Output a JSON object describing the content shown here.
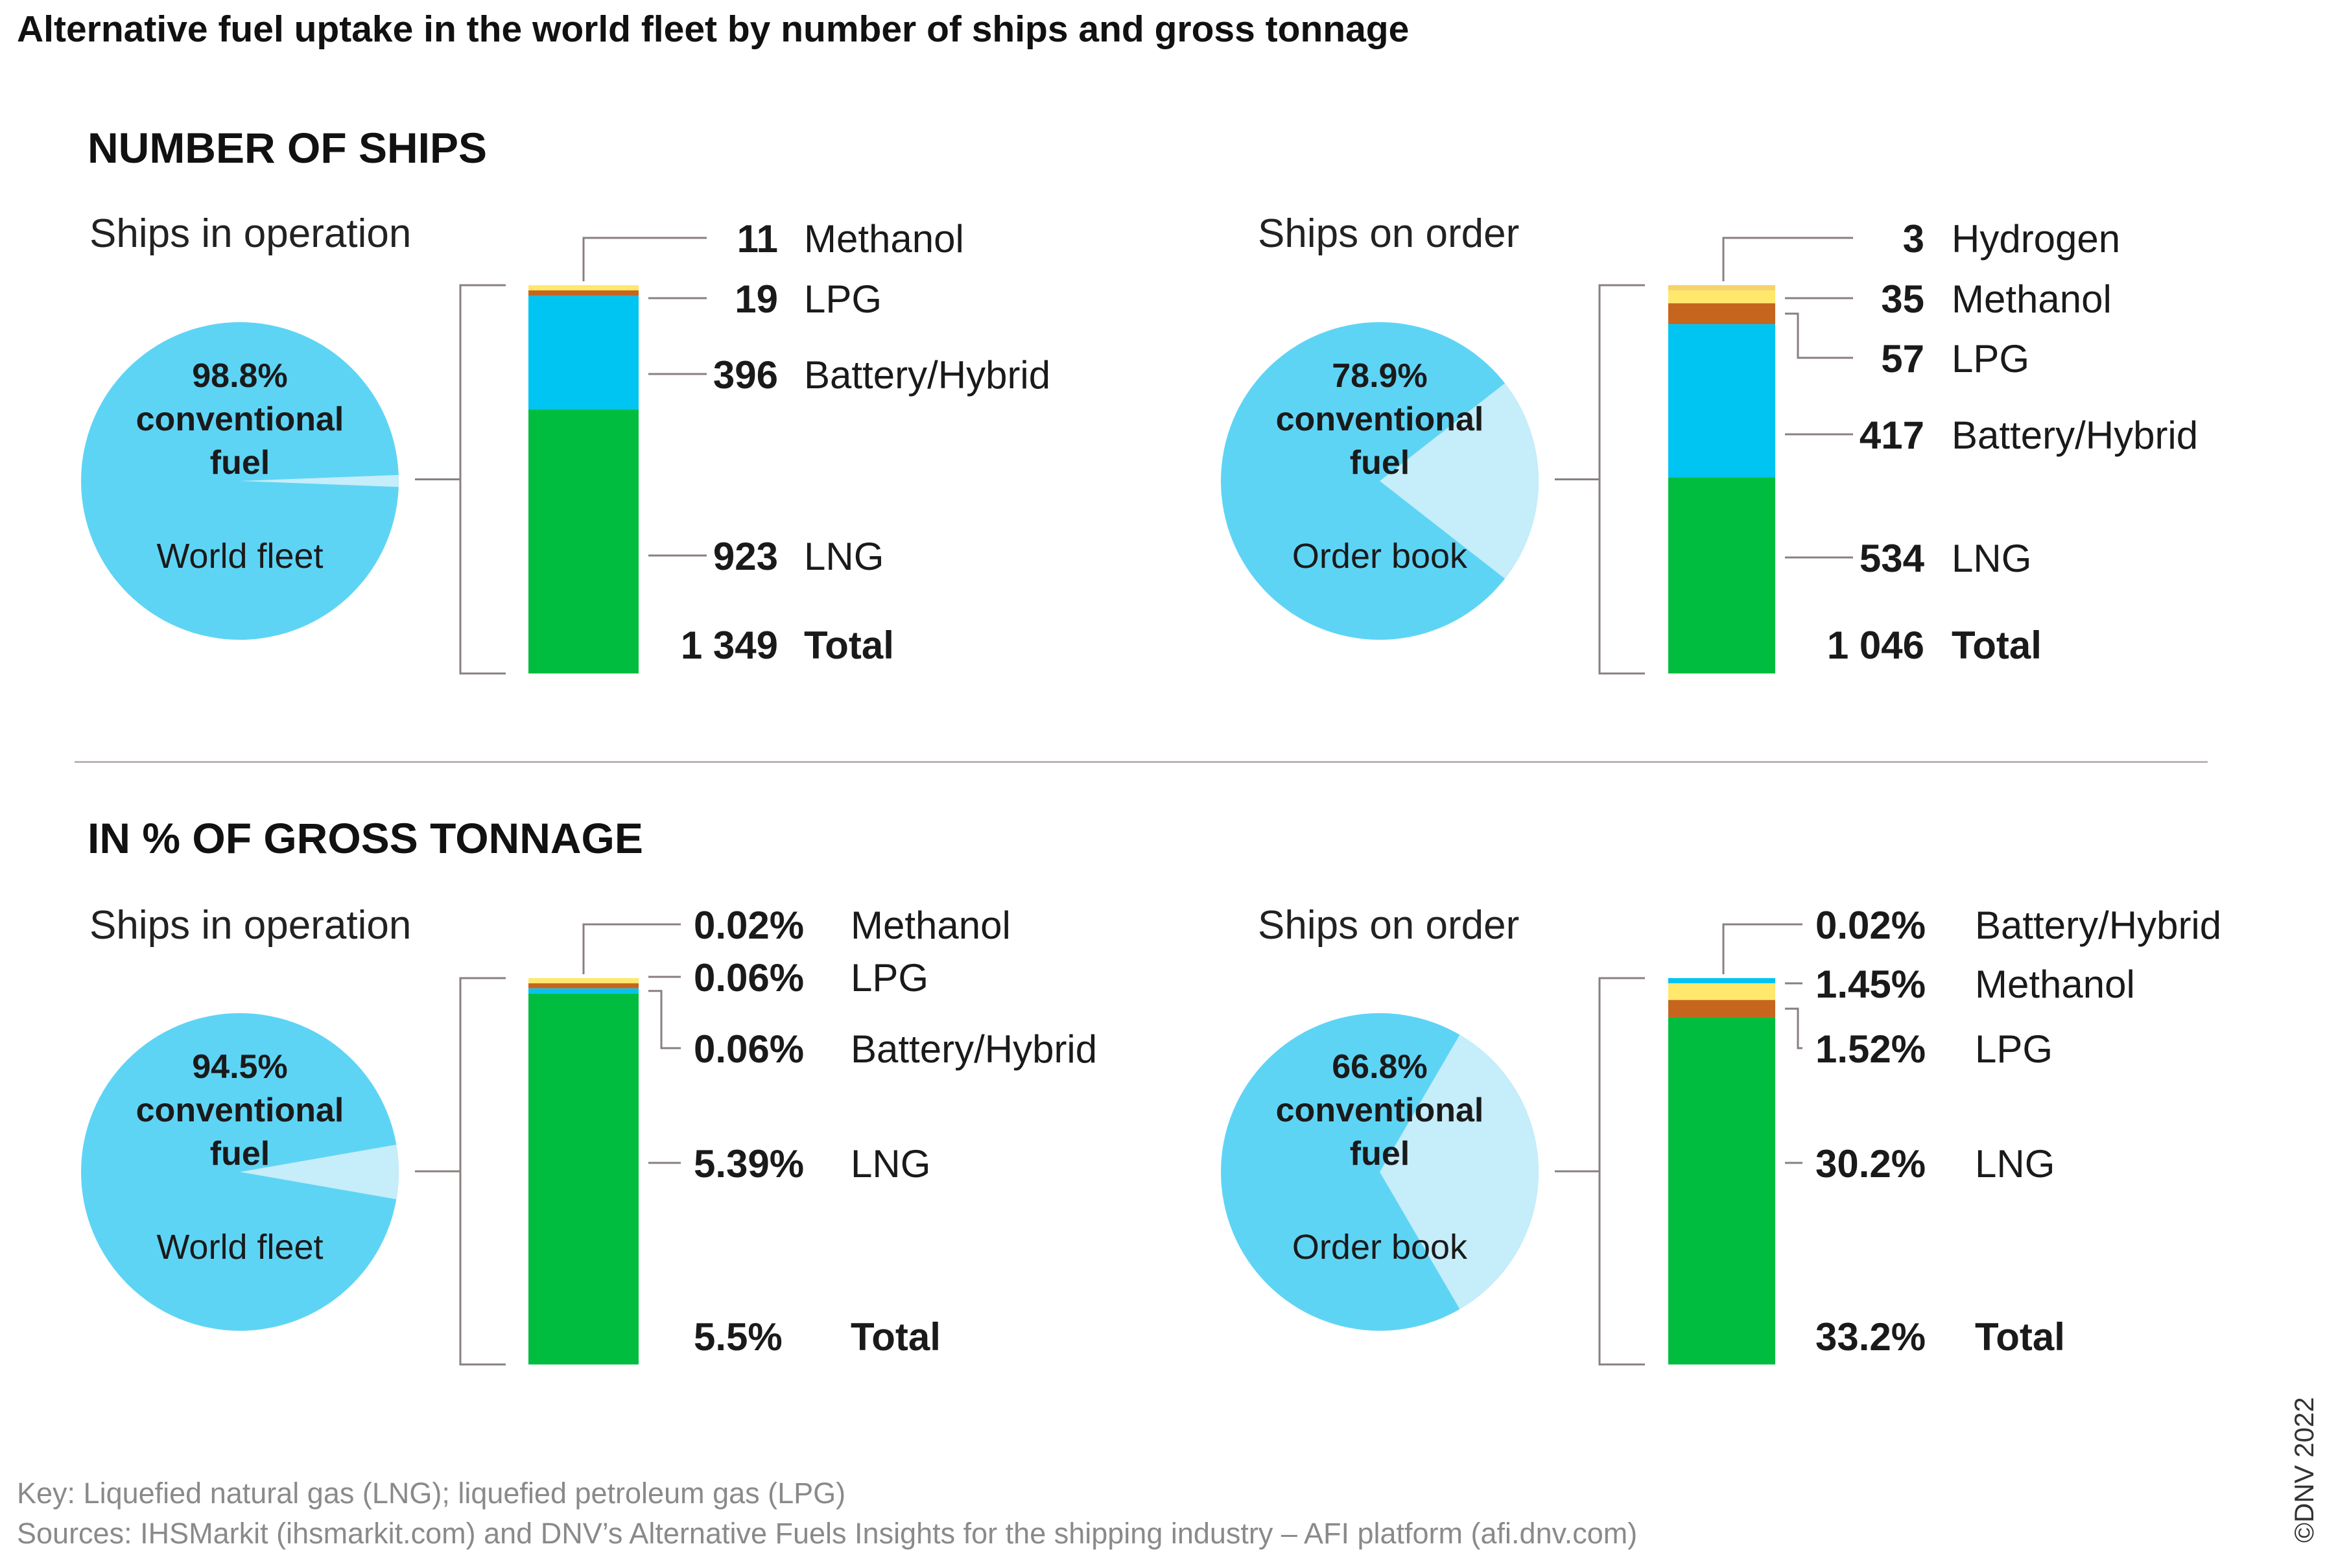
{
  "title": "Alternative fuel uptake in the world fleet by number of ships and gross tonnage",
  "sections": {
    "ships": "NUMBER OF SHIPS",
    "tonnage": "IN % OF GROSS TONNAGE"
  },
  "colors": {
    "pie_main": "#5ED4F5",
    "pie_slice": "#C5EDFA",
    "lng": "#00BD3F",
    "battery": "#00C4F2",
    "lpg": "#C6661E",
    "methanol": "#FFE86B",
    "hydrogen": "#F6D26B",
    "leader": "#8a7f7f"
  },
  "chart_data": [
    {
      "type": "bar",
      "panel": "ships-operation",
      "subtitle": "Ships in operation",
      "pie": {
        "pct_label": "98.8%",
        "line2": "conventional",
        "line3": "fuel",
        "caption": "World fleet",
        "main_share": 0.988
      },
      "segments": [
        {
          "name": "LNG",
          "value": 923,
          "label": "923",
          "color": "lng"
        },
        {
          "name": "Battery/Hybrid",
          "value": 396,
          "label": "396",
          "color": "battery"
        },
        {
          "name": "LPG",
          "value": 19,
          "label": "19",
          "color": "lpg"
        },
        {
          "name": "Methanol",
          "value": 11,
          "label": "11",
          "color": "methanol"
        }
      ],
      "total": {
        "value": 1349,
        "label": "1 349",
        "name": "Total"
      }
    },
    {
      "type": "bar",
      "panel": "ships-order",
      "subtitle": "Ships on order",
      "pie": {
        "pct_label": "78.9%",
        "line2": "conventional",
        "line3": "fuel",
        "caption": "Order book",
        "main_share": 0.789
      },
      "segments": [
        {
          "name": "LNG",
          "value": 534,
          "label": "534",
          "color": "lng"
        },
        {
          "name": "Battery/Hybrid",
          "value": 417,
          "label": "417",
          "color": "battery"
        },
        {
          "name": "LPG",
          "value": 57,
          "label": "57",
          "color": "lpg"
        },
        {
          "name": "Methanol",
          "value": 35,
          "label": "35",
          "color": "methanol"
        },
        {
          "name": "Hydrogen",
          "value": 3,
          "label": "3",
          "color": "hydrogen"
        }
      ],
      "total": {
        "value": 1046,
        "label": "1 046",
        "name": "Total"
      }
    },
    {
      "type": "bar",
      "panel": "tonnage-operation",
      "subtitle": "Ships in operation",
      "pie": {
        "pct_label": "94.5%",
        "line2": "conventional",
        "line3": "fuel",
        "caption": "World fleet",
        "main_share": 0.945
      },
      "segments": [
        {
          "name": "LNG",
          "value": 5.39,
          "label": "5.39%",
          "color": "lng"
        },
        {
          "name": "Battery/Hybrid",
          "value": 0.06,
          "label": "0.06%",
          "color": "battery"
        },
        {
          "name": "LPG",
          "value": 0.06,
          "label": "0.06%",
          "color": "lpg"
        },
        {
          "name": "Methanol",
          "value": 0.02,
          "label": "0.02%",
          "color": "methanol"
        }
      ],
      "total": {
        "value": 5.5,
        "label": "5.5%",
        "name": "Total"
      }
    },
    {
      "type": "bar",
      "panel": "tonnage-order",
      "subtitle": "Ships on order",
      "pie": {
        "pct_label": "66.8%",
        "line2": "conventional",
        "line3": "fuel",
        "caption": "Order book",
        "main_share": 0.668
      },
      "segments": [
        {
          "name": "LNG",
          "value": 30.2,
          "label": "30.2%",
          "color": "lng"
        },
        {
          "name": "LPG",
          "value": 1.52,
          "label": "1.52%",
          "color": "lpg"
        },
        {
          "name": "Methanol",
          "value": 1.45,
          "label": "1.45%",
          "color": "methanol"
        },
        {
          "name": "Battery/Hybrid",
          "value": 0.02,
          "label": "0.02%",
          "color": "battery"
        }
      ],
      "total": {
        "value": 33.2,
        "label": "33.2%",
        "name": "Total"
      }
    }
  ],
  "footer": {
    "key": "Key: Liquefied natural gas (LNG); liquefied petroleum gas (LPG)",
    "sources": "Sources: IHSMarkit (ihsmarkit.com) and DNV’s Alternative Fuels Insights for the shipping industry – AFI platform (afi.dnv.com)",
    "copyright": "©DNV 2022"
  }
}
